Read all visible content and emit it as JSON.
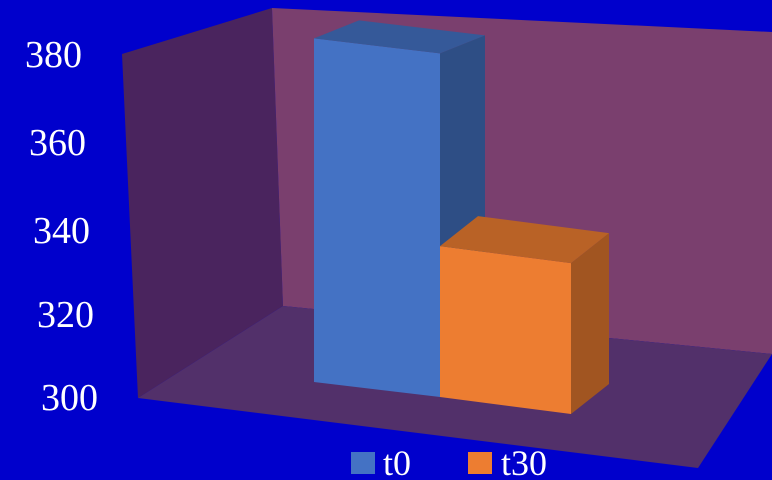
{
  "chart_data": {
    "type": "bar",
    "style": "3d",
    "categories": [
      ""
    ],
    "series": [
      {
        "name": "t0",
        "values": [
          382
        ],
        "color": "#4472c4"
      },
      {
        "name": "t30",
        "values": [
          336
        ],
        "color": "#ed7d31"
      }
    ],
    "title": "",
    "xlabel": "",
    "ylabel": "",
    "ylim": [
      300,
      380
    ],
    "yticks": [
      "300",
      "320",
      "340",
      "360",
      "380"
    ],
    "grid": false,
    "legend_position": "bottom",
    "colors": {
      "background": "#0000cc",
      "wall_back": "#7a3f6e",
      "wall_side": "#4a245e",
      "floor": "#52306a"
    }
  }
}
